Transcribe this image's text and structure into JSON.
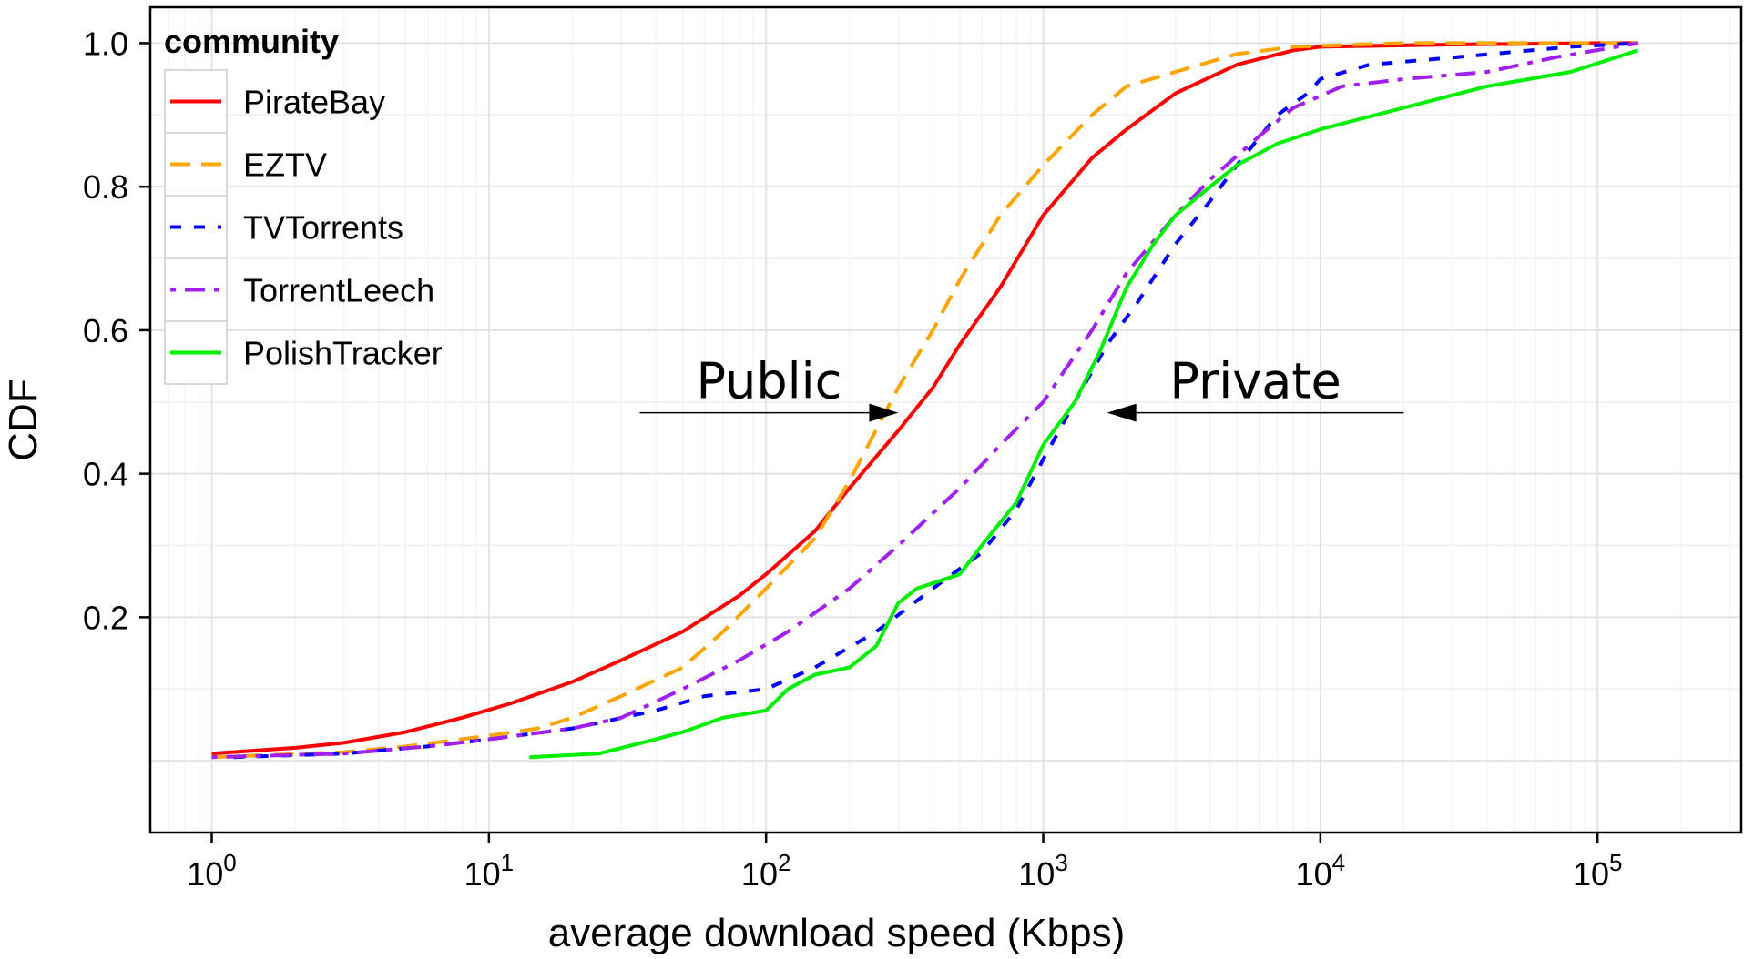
{
  "chart_data": {
    "type": "line",
    "xscale": "log10",
    "xlabel": "average download speed (Kbps)",
    "ylabel": "CDF",
    "xlim": [
      0.6,
      330000
    ],
    "ylim": [
      -0.1,
      1.05
    ],
    "x_ticks": [
      {
        "value": 1,
        "base": "10",
        "exp": "0"
      },
      {
        "value": 10,
        "base": "10",
        "exp": "1"
      },
      {
        "value": 100,
        "base": "10",
        "exp": "2"
      },
      {
        "value": 1000,
        "base": "10",
        "exp": "3"
      },
      {
        "value": 10000,
        "base": "10",
        "exp": "4"
      },
      {
        "value": 100000,
        "base": "10",
        "exp": "5"
      }
    ],
    "y_ticks": [
      {
        "value": 0.2,
        "label": "0.2"
      },
      {
        "value": 0.4,
        "label": "0.4"
      },
      {
        "value": 0.6,
        "label": "0.6"
      },
      {
        "value": 0.8,
        "label": "0.8"
      },
      {
        "value": 1.0,
        "label": "1.0"
      }
    ],
    "grid": true,
    "legend": {
      "title": "community",
      "position": "top-left"
    },
    "annotations": [
      {
        "text": "Public",
        "arrow_from_x": 35,
        "arrow_to_x": 300,
        "y": 0.485
      },
      {
        "text": "Private",
        "arrow_from_x": 20000,
        "arrow_to_x": 1700,
        "y": 0.485
      }
    ],
    "series": [
      {
        "name": "PirateBay",
        "color": "#ff0000",
        "dash": "solid",
        "points": [
          [
            1,
            0.01
          ],
          [
            2,
            0.018
          ],
          [
            3,
            0.025
          ],
          [
            5,
            0.04
          ],
          [
            8,
            0.06
          ],
          [
            12,
            0.08
          ],
          [
            20,
            0.11
          ],
          [
            30,
            0.14
          ],
          [
            50,
            0.18
          ],
          [
            80,
            0.23
          ],
          [
            100,
            0.26
          ],
          [
            150,
            0.32
          ],
          [
            200,
            0.38
          ],
          [
            300,
            0.46
          ],
          [
            400,
            0.52
          ],
          [
            500,
            0.58
          ],
          [
            700,
            0.66
          ],
          [
            1000,
            0.76
          ],
          [
            1500,
            0.84
          ],
          [
            2000,
            0.88
          ],
          [
            3000,
            0.93
          ],
          [
            5000,
            0.97
          ],
          [
            8000,
            0.99
          ],
          [
            10000,
            0.995
          ],
          [
            30000,
            0.998
          ],
          [
            100000,
            1.0
          ],
          [
            140000,
            1.0
          ]
        ]
      },
      {
        "name": "EZTV",
        "color": "#ffa500",
        "dash": "long",
        "points": [
          [
            1,
            0.005
          ],
          [
            3,
            0.012
          ],
          [
            5,
            0.02
          ],
          [
            10,
            0.035
          ],
          [
            15,
            0.045
          ],
          [
            20,
            0.06
          ],
          [
            30,
            0.09
          ],
          [
            50,
            0.13
          ],
          [
            70,
            0.18
          ],
          [
            100,
            0.24
          ],
          [
            150,
            0.31
          ],
          [
            200,
            0.39
          ],
          [
            300,
            0.52
          ],
          [
            400,
            0.6
          ],
          [
            500,
            0.67
          ],
          [
            700,
            0.76
          ],
          [
            1000,
            0.83
          ],
          [
            1500,
            0.9
          ],
          [
            2000,
            0.94
          ],
          [
            3000,
            0.96
          ],
          [
            5000,
            0.985
          ],
          [
            8000,
            0.995
          ],
          [
            20000,
            1.0
          ],
          [
            140000,
            1.0
          ]
        ]
      },
      {
        "name": "TVTorrents",
        "color": "#0000ff",
        "dash": "short",
        "points": [
          [
            1.2,
            0.005
          ],
          [
            3,
            0.01
          ],
          [
            6,
            0.02
          ],
          [
            10,
            0.03
          ],
          [
            20,
            0.045
          ],
          [
            40,
            0.07
          ],
          [
            60,
            0.09
          ],
          [
            100,
            0.1
          ],
          [
            150,
            0.13
          ],
          [
            250,
            0.18
          ],
          [
            400,
            0.24
          ],
          [
            600,
            0.29
          ],
          [
            800,
            0.35
          ],
          [
            1000,
            0.42
          ],
          [
            1300,
            0.5
          ],
          [
            1700,
            0.58
          ],
          [
            2200,
            0.64
          ],
          [
            3000,
            0.72
          ],
          [
            4000,
            0.78
          ],
          [
            5000,
            0.83
          ],
          [
            7000,
            0.9
          ],
          [
            9000,
            0.93
          ],
          [
            10000,
            0.95
          ],
          [
            15000,
            0.97
          ],
          [
            30000,
            0.98
          ],
          [
            80000,
            0.995
          ],
          [
            140000,
            1.0
          ]
        ]
      },
      {
        "name": "TorrentLeech",
        "color": "#a020f0",
        "dash": "dashdot",
        "points": [
          [
            1,
            0.005
          ],
          [
            3,
            0.01
          ],
          [
            6,
            0.02
          ],
          [
            10,
            0.03
          ],
          [
            20,
            0.045
          ],
          [
            30,
            0.06
          ],
          [
            50,
            0.1
          ],
          [
            80,
            0.14
          ],
          [
            120,
            0.18
          ],
          [
            200,
            0.24
          ],
          [
            300,
            0.3
          ],
          [
            500,
            0.38
          ],
          [
            700,
            0.44
          ],
          [
            1000,
            0.5
          ],
          [
            1500,
            0.6
          ],
          [
            2000,
            0.68
          ],
          [
            3000,
            0.76
          ],
          [
            4000,
            0.81
          ],
          [
            6000,
            0.87
          ],
          [
            8000,
            0.91
          ],
          [
            12000,
            0.94
          ],
          [
            20000,
            0.95
          ],
          [
            40000,
            0.96
          ],
          [
            70000,
            0.98
          ],
          [
            140000,
            1.0
          ]
        ]
      },
      {
        "name": "PolishTracker",
        "color": "#00ee00",
        "dash": "solid",
        "points": [
          [
            14,
            0.005
          ],
          [
            25,
            0.01
          ],
          [
            40,
            0.03
          ],
          [
            50,
            0.04
          ],
          [
            70,
            0.06
          ],
          [
            100,
            0.07
          ],
          [
            120,
            0.1
          ],
          [
            150,
            0.12
          ],
          [
            200,
            0.13
          ],
          [
            250,
            0.16
          ],
          [
            300,
            0.22
          ],
          [
            350,
            0.24
          ],
          [
            500,
            0.26
          ],
          [
            600,
            0.3
          ],
          [
            800,
            0.36
          ],
          [
            1000,
            0.44
          ],
          [
            1300,
            0.5
          ],
          [
            1600,
            0.57
          ],
          [
            2000,
            0.66
          ],
          [
            2500,
            0.72
          ],
          [
            3000,
            0.76
          ],
          [
            4000,
            0.8
          ],
          [
            5000,
            0.83
          ],
          [
            7000,
            0.86
          ],
          [
            10000,
            0.88
          ],
          [
            20000,
            0.91
          ],
          [
            40000,
            0.94
          ],
          [
            80000,
            0.96
          ],
          [
            140000,
            0.99
          ]
        ]
      }
    ]
  }
}
